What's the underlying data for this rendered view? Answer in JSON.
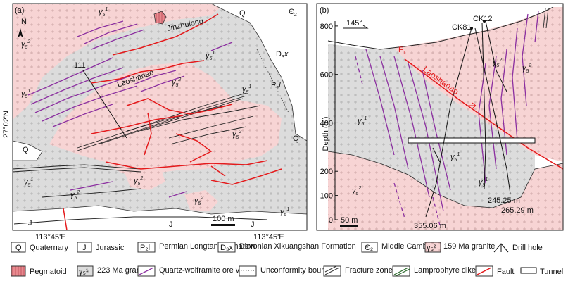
{
  "panels": {
    "a": {
      "label": "(a)",
      "north_label": "N",
      "names": {
        "jinzhulong": "Jinzhulong",
        "laoshanao": "Laoshanao"
      },
      "lat_label": "27°02'N",
      "lon_left": "113°45'E",
      "lon_right": "113°45'E",
      "section_number": "111",
      "scale_label": "100 m",
      "unit_labels": {
        "q": "Q",
        "j": "J",
        "cambrian": "Є",
        "cambrian_sub": "2",
        "devonian": "D",
        "devonian_sub": "3",
        "devonian_suffix": "x",
        "permian": "P",
        "permian_sub": "2",
        "permian_suffix": "l",
        "g1": "γ",
        "g1_sub": "5",
        "g1_sup": "1",
        "g2_sup": "2"
      }
    },
    "b": {
      "label": "(b)",
      "azimuth": "145°",
      "fault_label": "F",
      "fault_sub": "1",
      "fault_name": "Laoshanao",
      "drill_holes": [
        "CK81",
        "CK12"
      ],
      "depth_values": [
        "245.25 m",
        "265.29 m",
        "355.06 m"
      ],
      "scale_label": "50 m",
      "y_axis": {
        "label": "Depth (m)",
        "ticks": [
          0,
          100,
          200,
          400,
          600,
          800
        ],
        "range": [
          0,
          820
        ]
      }
    }
  },
  "legend": [
    {
      "symbol": "Q",
      "name": "Quaternary"
    },
    {
      "symbol": "J",
      "name": "Jurassic"
    },
    {
      "symbol": "P₂l",
      "name": "Permian Longtan Formation"
    },
    {
      "symbol": "D₃x",
      "name": "Devonian Xikuangshan Formation"
    },
    {
      "symbol": "Є₂",
      "name": "Middle Cambrian"
    },
    {
      "symbol": "γ₅²",
      "name": "159 Ma granite"
    },
    {
      "symbol": "",
      "name": "Drill hole"
    },
    {
      "symbol": "",
      "name": "Pegmatoid"
    },
    {
      "symbol": "γ₅¹",
      "name": "223 Ma granite"
    },
    {
      "symbol": "",
      "name": "Quartz-wolframite ore vein"
    },
    {
      "symbol": "",
      "name": "Unconformity boundary"
    },
    {
      "symbol": "",
      "name": "Fracture zone"
    },
    {
      "symbol": "",
      "name": "Lamprophyre dike"
    },
    {
      "symbol": "",
      "name": "Fault"
    },
    {
      "symbol": "",
      "name": "Tunnel"
    }
  ],
  "colors": {
    "granite_223": "#dcdcdc",
    "granite_159": "#f7d4d4",
    "pegmatoid": "#e8898e",
    "ore_vein": "#8b2fa0",
    "fault": "#e41a1c",
    "sediment": "#ffffff"
  }
}
